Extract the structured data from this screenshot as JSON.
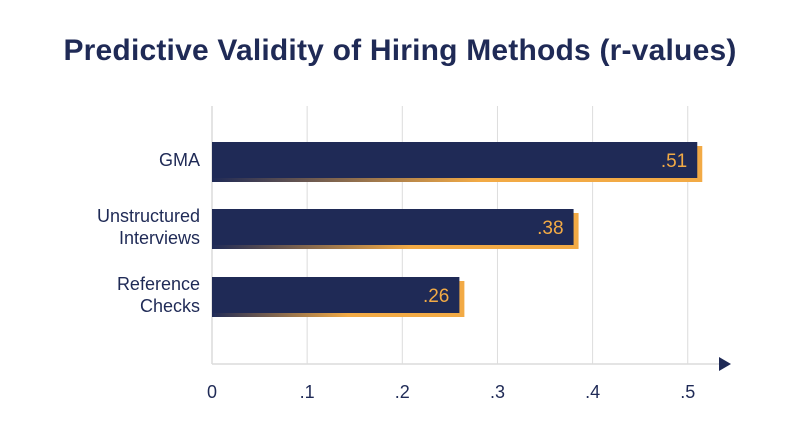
{
  "chart_data": {
    "type": "bar",
    "orientation": "horizontal",
    "title": "Predictive Validity of Hiring Methods (r-values)",
    "categories": [
      [
        "GMA"
      ],
      [
        "Unstructured",
        "Interviews"
      ],
      [
        "Reference",
        "Checks"
      ]
    ],
    "values": [
      0.51,
      0.38,
      0.26
    ],
    "data_labels": [
      ".51",
      ".38",
      ".26"
    ],
    "xlim": [
      0,
      0.5
    ],
    "x_ticks": [
      0,
      0.1,
      0.2,
      0.3,
      0.4,
      0.5
    ],
    "x_tick_labels": [
      "0",
      ".1",
      ".2",
      ".3",
      ".4",
      ".5"
    ],
    "grid": "vertical",
    "legend": "none",
    "colors": {
      "bar": "#1f2a56",
      "accent": "#f2aa45",
      "text": "#1f2a56",
      "grid": "#dcdcdc",
      "label": "#f2aa45"
    }
  }
}
